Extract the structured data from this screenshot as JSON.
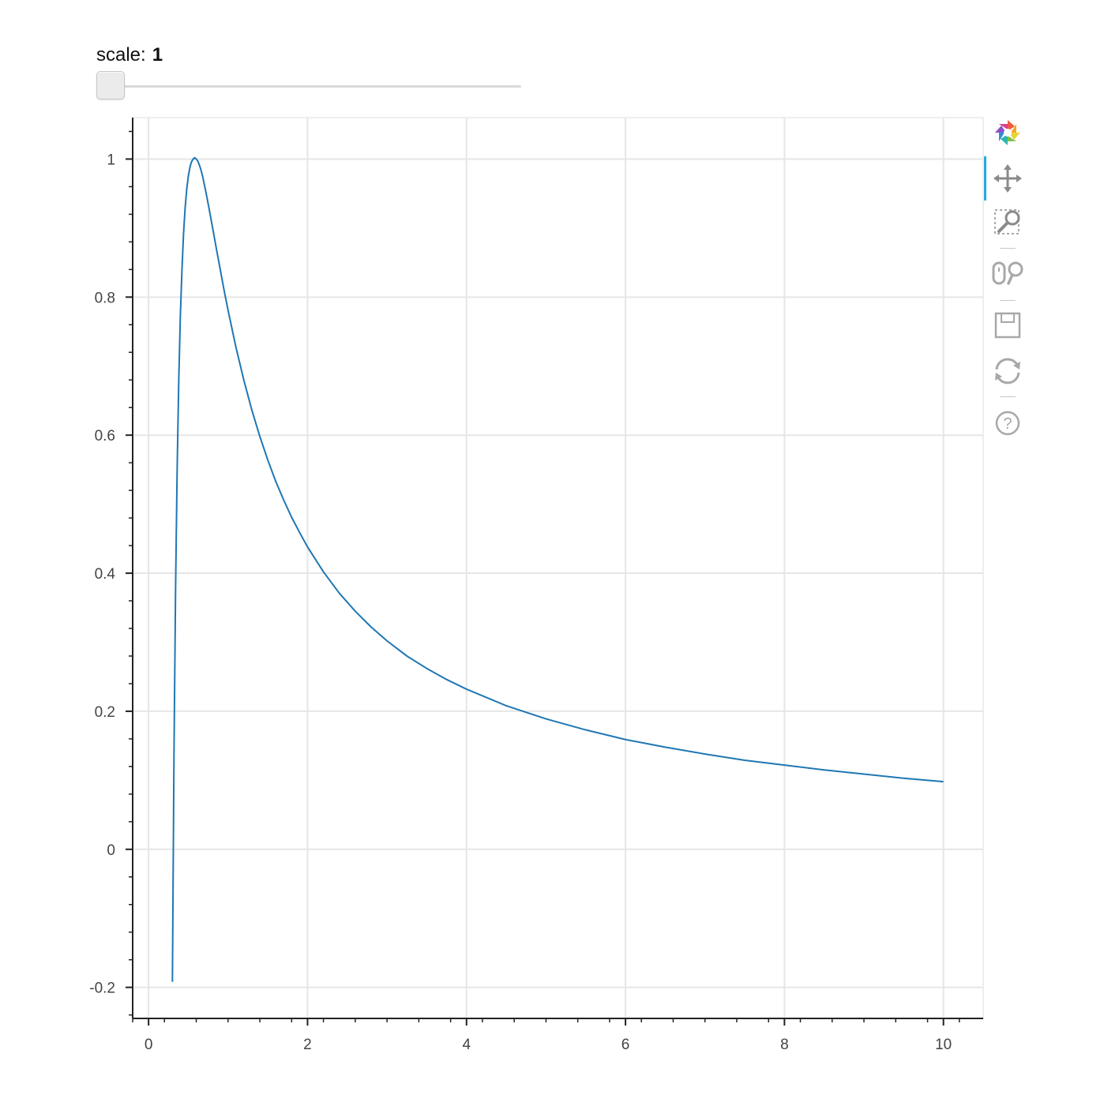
{
  "slider": {
    "title": "scale:",
    "value": "1",
    "numeric_value": 1,
    "start": 1,
    "end": 10
  },
  "toolbar": {
    "logo": "bokeh-logo-icon",
    "tools": [
      {
        "name": "pan-tool",
        "active": true
      },
      {
        "name": "box-zoom-tool",
        "active": false
      },
      {
        "name": "wheel-zoom-tool",
        "active": false
      },
      {
        "name": "save-tool",
        "active": false
      },
      {
        "name": "reset-tool",
        "active": false
      },
      {
        "name": "help-tool",
        "active": false
      }
    ]
  },
  "chart_data": {
    "type": "line",
    "title": "",
    "xlabel": "",
    "ylabel": "",
    "xlim": [
      -0.2,
      10.5
    ],
    "ylim": [
      -0.245,
      1.06
    ],
    "xticks": [
      0,
      2,
      4,
      6,
      8,
      10
    ],
    "xtick_labels": [
      "0",
      "2",
      "4",
      "6",
      "8",
      "10"
    ],
    "yticks": [
      -0.2,
      0,
      0.2,
      0.4,
      0.6,
      0.8,
      1
    ],
    "ytick_labels": [
      "-0.2",
      "0",
      "0.2",
      "0.4",
      "0.6",
      "0.8",
      "1"
    ],
    "grid": true,
    "line_color": "#1f77b4",
    "series": [
      {
        "x": [
          0.3,
          0.32,
          0.34,
          0.36,
          0.38,
          0.4,
          0.42,
          0.44,
          0.46,
          0.48,
          0.5,
          0.52,
          0.54,
          0.56,
          0.58,
          0.6,
          0.62,
          0.64,
          0.66,
          0.68,
          0.7,
          0.72,
          0.74,
          0.76,
          0.8,
          0.85,
          0.9,
          0.95,
          1.0,
          1.1,
          1.2,
          1.3,
          1.4,
          1.5,
          1.6,
          1.7,
          1.8,
          1.9,
          2.0,
          2.2,
          2.4,
          2.6,
          2.8,
          3.0,
          3.25,
          3.5,
          3.75,
          4.0,
          4.5,
          5.0,
          5.5,
          6.0,
          6.5,
          7.0,
          7.5,
          8.0,
          8.5,
          9.0,
          9.5,
          10.0
        ],
        "y": [
          -0.192,
          0.14,
          0.38,
          0.553,
          0.68,
          0.773,
          0.839,
          0.892,
          0.929,
          0.956,
          0.975,
          0.988,
          0.996,
          1.0,
          1.002,
          1.0,
          0.997,
          0.991,
          0.984,
          0.975,
          0.964,
          0.953,
          0.941,
          0.929,
          0.904,
          0.872,
          0.841,
          0.81,
          0.781,
          0.727,
          0.679,
          0.636,
          0.598,
          0.564,
          0.533,
          0.506,
          0.481,
          0.459,
          0.438,
          0.402,
          0.371,
          0.345,
          0.322,
          0.302,
          0.28,
          0.262,
          0.246,
          0.232,
          0.208,
          0.189,
          0.173,
          0.159,
          0.148,
          0.138,
          0.129,
          0.122,
          0.115,
          0.109,
          0.103,
          0.098
        ]
      }
    ]
  }
}
